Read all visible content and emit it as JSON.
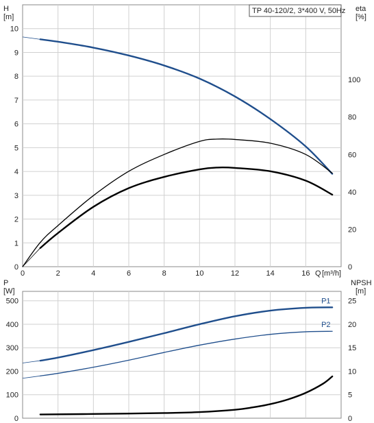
{
  "chart_data": [
    {
      "type": "line",
      "title": "TP 40-120/2, 3*400 V, 50Hz",
      "xlabel": "Q",
      "xunit": "[m³/h]",
      "xlim": [
        0,
        18
      ],
      "xticks": [
        0,
        2,
        4,
        6,
        8,
        10,
        12,
        14,
        16
      ],
      "left_axis": {
        "label": "H",
        "unit": "[m]",
        "lim": [
          0,
          11
        ],
        "ticks": [
          0,
          1,
          2,
          3,
          4,
          5,
          6,
          7,
          8,
          9,
          10
        ]
      },
      "right_axis": {
        "label": "eta",
        "unit": "[%]",
        "lim": [
          0,
          140
        ],
        "ticks": [
          0,
          20,
          40,
          60,
          80,
          100
        ]
      },
      "grid": true,
      "series": [
        {
          "axis": "left",
          "color": "#1f4e8c",
          "width": 2.4,
          "x": [
            1,
            2,
            4,
            6,
            8,
            10,
            12,
            14,
            16,
            17.5
          ],
          "y": [
            9.55,
            9.45,
            9.2,
            8.87,
            8.45,
            7.9,
            7.15,
            6.2,
            5.05,
            3.9
          ],
          "extension": {
            "x": [
              0,
              1
            ],
            "y": [
              9.65,
              9.55
            ]
          }
        },
        {
          "axis": "right",
          "color": "#000000",
          "width": 1.3,
          "x": [
            0,
            1,
            2,
            4,
            6,
            8,
            10,
            11,
            12,
            14,
            16,
            17.5
          ],
          "y": [
            0,
            13,
            22,
            38,
            51,
            60,
            67,
            68.2,
            68,
            66,
            60,
            50
          ]
        },
        {
          "axis": "right",
          "color": "#000000",
          "width": 2.4,
          "x": [
            1,
            2,
            4,
            6,
            8,
            10,
            11,
            12,
            14,
            16,
            17.5
          ],
          "y": [
            10,
            18,
            32,
            42,
            48,
            52,
            53,
            52.8,
            51,
            46,
            38.5
          ],
          "extension": {
            "x": [
              0,
              1
            ],
            "y": [
              0,
              10
            ]
          }
        }
      ]
    },
    {
      "type": "line",
      "xlim": [
        0,
        18
      ],
      "left_axis": {
        "label": "P",
        "unit": "[W]",
        "lim": [
          0,
          540
        ],
        "ticks": [
          0,
          100,
          200,
          300,
          400,
          500
        ]
      },
      "right_axis": {
        "label": "NPSH",
        "unit": "[m]",
        "lim": [
          0,
          27
        ],
        "ticks": [
          0,
          5,
          10,
          15,
          20,
          25
        ]
      },
      "grid": true,
      "series": [
        {
          "name": "P1",
          "axis": "left",
          "color": "#1f4e8c",
          "width": 2.4,
          "x": [
            1,
            2,
            4,
            6,
            8,
            10,
            12,
            14,
            16,
            17.5
          ],
          "y": [
            245,
            258,
            290,
            325,
            362,
            400,
            434,
            458,
            470,
            472
          ],
          "extension": {
            "x": [
              0,
              1
            ],
            "y": [
              235,
              245
            ]
          }
        },
        {
          "name": "P2",
          "axis": "left",
          "color": "#1f4e8c",
          "width": 1.3,
          "x": [
            1,
            2,
            4,
            6,
            8,
            10,
            12,
            14,
            16,
            17.5
          ],
          "y": [
            180,
            191,
            217,
            247,
            280,
            311,
            337,
            357,
            368,
            370
          ],
          "extension": {
            "x": [
              0,
              1
            ],
            "y": [
              170,
              180
            ]
          }
        },
        {
          "axis": "right",
          "color": "#000000",
          "width": 2.4,
          "x": [
            1,
            4,
            8,
            10,
            12,
            13,
            14,
            15,
            16,
            17,
            17.5
          ],
          "y": [
            0.8,
            0.9,
            1.1,
            1.3,
            1.8,
            2.3,
            3.0,
            4.0,
            5.4,
            7.4,
            8.9
          ]
        }
      ]
    }
  ]
}
